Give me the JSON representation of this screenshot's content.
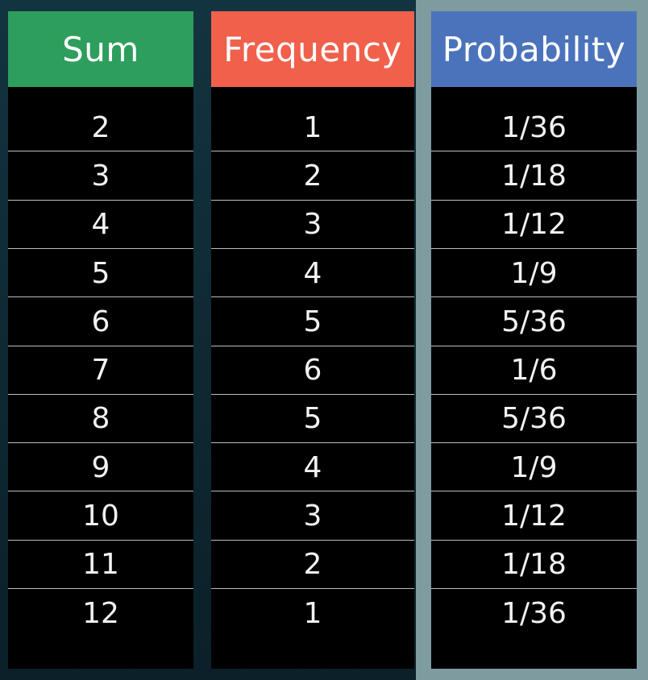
{
  "chart_data": {
    "type": "table",
    "columns": [
      "Sum",
      "Frequency",
      "Probability"
    ],
    "rows": [
      {
        "sum": "2",
        "frequency": "1",
        "probability": "1/36"
      },
      {
        "sum": "3",
        "frequency": "2",
        "probability": "1/18"
      },
      {
        "sum": "4",
        "frequency": "3",
        "probability": "1/12"
      },
      {
        "sum": "5",
        "frequency": "4",
        "probability": "1/9"
      },
      {
        "sum": "6",
        "frequency": "5",
        "probability": "5/36"
      },
      {
        "sum": "7",
        "frequency": "6",
        "probability": "1/6"
      },
      {
        "sum": "8",
        "frequency": "5",
        "probability": "5/36"
      },
      {
        "sum": "9",
        "frequency": "4",
        "probability": "1/9"
      },
      {
        "sum": "10",
        "frequency": "3",
        "probability": "1/12"
      },
      {
        "sum": "11",
        "frequency": "2",
        "probability": "1/18"
      },
      {
        "sum": "12",
        "frequency": "1",
        "probability": "1/36"
      }
    ]
  },
  "colors": {
    "sum_header": "#2e9e5c",
    "frequency_header": "#f0604b",
    "probability_header": "#4a73bb",
    "highlight_frame": "#7e9ba0"
  }
}
